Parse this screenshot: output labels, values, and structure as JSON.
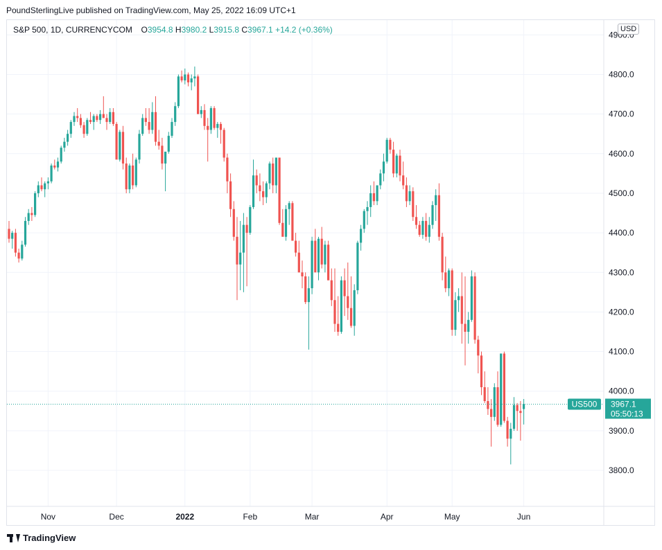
{
  "header": {
    "published": "PoundSterlingLive published on TradingView.com, May 25, 2022 16:09 UTC+1"
  },
  "legend": {
    "symbol": "S&P 500, 1D, CURRENCYCOM",
    "o_label": "O",
    "o": "3954.8",
    "h_label": "H",
    "h": "3980.2",
    "l_label": "L",
    "l": "3915.8",
    "c_label": "C",
    "c": "3967.1",
    "change": "+14.2 (+0.36%)"
  },
  "currency": "USD",
  "price_tag": {
    "label": "US500",
    "price": "3967.1",
    "countdown": "05:50:13"
  },
  "footer": {
    "brand": "TradingView"
  },
  "colors": {
    "up": "#26a69a",
    "down": "#ef5350",
    "grid": "#f0f3fa",
    "text": "#131722"
  },
  "chart_data": {
    "type": "candlestick",
    "title": "S&P 500, 1D, CURRENCYCOM",
    "ylim": [
      3700,
      4960
    ],
    "y_ticks": [
      3800,
      3900,
      4000,
      4100,
      4200,
      4300,
      4400,
      4500,
      4600,
      4700,
      4800,
      4900
    ],
    "x_ticks": [
      {
        "label": "Nov",
        "i": 12
      },
      {
        "label": "Dec",
        "i": 33
      },
      {
        "label": "2022",
        "i": 54,
        "bold": true
      },
      {
        "label": "Feb",
        "i": 74
      },
      {
        "label": "Mar",
        "i": 93
      },
      {
        "label": "Apr",
        "i": 116
      },
      {
        "label": "May",
        "i": 136
      },
      {
        "label": "Jun",
        "i": 158
      }
    ],
    "last_price": 3967.1,
    "candles": [
      [
        4410,
        4430,
        4375,
        4385
      ],
      [
        4385,
        4405,
        4360,
        4400
      ],
      [
        4400,
        4410,
        4340,
        4350
      ],
      [
        4350,
        4360,
        4325,
        4335
      ],
      [
        4335,
        4380,
        4330,
        4370
      ],
      [
        4370,
        4440,
        4365,
        4430
      ],
      [
        4430,
        4460,
        4420,
        4450
      ],
      [
        4450,
        4465,
        4430,
        4445
      ],
      [
        4445,
        4505,
        4440,
        4500
      ],
      [
        4500,
        4530,
        4490,
        4520
      ],
      [
        4520,
        4540,
        4505,
        4510
      ],
      [
        4510,
        4530,
        4490,
        4525
      ],
      [
        4525,
        4540,
        4510,
        4530
      ],
      [
        4530,
        4575,
        4525,
        4570
      ],
      [
        4570,
        4585,
        4560,
        4565
      ],
      [
        4565,
        4590,
        4555,
        4580
      ],
      [
        4580,
        4620,
        4575,
        4615
      ],
      [
        4615,
        4640,
        4605,
        4630
      ],
      [
        4630,
        4660,
        4620,
        4650
      ],
      [
        4650,
        4685,
        4640,
        4680
      ],
      [
        4680,
        4705,
        4670,
        4695
      ],
      [
        4695,
        4715,
        4680,
        4690
      ],
      [
        4690,
        4700,
        4665,
        4672
      ],
      [
        4672,
        4680,
        4640,
        4650
      ],
      [
        4650,
        4690,
        4645,
        4685
      ],
      [
        4685,
        4705,
        4675,
        4680
      ],
      [
        4680,
        4700,
        4660,
        4695
      ],
      [
        4695,
        4700,
        4680,
        4685
      ],
      [
        4685,
        4710,
        4675,
        4700
      ],
      [
        4700,
        4745,
        4690,
        4690
      ],
      [
        4690,
        4700,
        4660,
        4680
      ],
      [
        4680,
        4715,
        4675,
        4705
      ],
      [
        4705,
        4715,
        4670,
        4675
      ],
      [
        4675,
        4680,
        4590,
        4585
      ],
      [
        4585,
        4660,
        4580,
        4655
      ],
      [
        4655,
        4670,
        4560,
        4575
      ],
      [
        4575,
        4590,
        4500,
        4510
      ],
      [
        4510,
        4575,
        4500,
        4570
      ],
      [
        4570,
        4600,
        4510,
        4520
      ],
      [
        4520,
        4590,
        4515,
        4585
      ],
      [
        4585,
        4660,
        4575,
        4650
      ],
      [
        4650,
        4700,
        4645,
        4690
      ],
      [
        4690,
        4715,
        4670,
        4680
      ],
      [
        4680,
        4715,
        4650,
        4660
      ],
      [
        4660,
        4730,
        4650,
        4705
      ],
      [
        4705,
        4745,
        4620,
        4630
      ],
      [
        4630,
        4660,
        4610,
        4620
      ],
      [
        4620,
        4640,
        4560,
        4575
      ],
      [
        4575,
        4600,
        4505,
        4605
      ],
      [
        4605,
        4655,
        4600,
        4645
      ],
      [
        4645,
        4690,
        4640,
        4680
      ],
      [
        4680,
        4730,
        4670,
        4720
      ],
      [
        4720,
        4800,
        4715,
        4795
      ],
      [
        4795,
        4810,
        4780,
        4785
      ],
      [
        4785,
        4815,
        4775,
        4800
      ],
      [
        4800,
        4805,
        4770,
        4780
      ],
      [
        4780,
        4800,
        4760,
        4790
      ],
      [
        4790,
        4820,
        4770,
        4795
      ],
      [
        4795,
        4800,
        4700,
        4700
      ],
      [
        4700,
        4720,
        4690,
        4710
      ],
      [
        4710,
        4725,
        4660,
        4670
      ],
      [
        4670,
        4690,
        4580,
        4660
      ],
      [
        4660,
        4720,
        4650,
        4715
      ],
      [
        4715,
        4720,
        4660,
        4665
      ],
      [
        4665,
        4680,
        4640,
        4675
      ],
      [
        4675,
        4680,
        4625,
        4660
      ],
      [
        4660,
        4665,
        4580,
        4590
      ],
      [
        4590,
        4600,
        4500,
        4530
      ],
      [
        4530,
        4550,
        4440,
        4460
      ],
      [
        4460,
        4480,
        4380,
        4390
      ],
      [
        4390,
        4440,
        4230,
        4320
      ],
      [
        4320,
        4430,
        4255,
        4350
      ],
      [
        4350,
        4450,
        4250,
        4420
      ],
      [
        4420,
        4440,
        4265,
        4400
      ],
      [
        4400,
        4470,
        4395,
        4465
      ],
      [
        4465,
        4585,
        4460,
        4545
      ],
      [
        4545,
        4560,
        4500,
        4520
      ],
      [
        4520,
        4550,
        4480,
        4505
      ],
      [
        4505,
        4530,
        4470,
        4490
      ],
      [
        4490,
        4530,
        4475,
        4525
      ],
      [
        4525,
        4580,
        4510,
        4575
      ],
      [
        4575,
        4590,
        4500,
        4520
      ],
      [
        4520,
        4590,
        4500,
        4590
      ],
      [
        4590,
        4590,
        4420,
        4425
      ],
      [
        4425,
        4460,
        4395,
        4390
      ],
      [
        4390,
        4470,
        4380,
        4460
      ],
      [
        4460,
        4480,
        4420,
        4475
      ],
      [
        4475,
        4480,
        4390,
        4380
      ],
      [
        4380,
        4400,
        4340,
        4350
      ],
      [
        4350,
        4380,
        4300,
        4300
      ],
      [
        4300,
        4330,
        4260,
        4290
      ],
      [
        4290,
        4300,
        4220,
        4225
      ],
      [
        4225,
        4290,
        4105,
        4260
      ],
      [
        4260,
        4390,
        4245,
        4380
      ],
      [
        4380,
        4410,
        4300,
        4300
      ],
      [
        4300,
        4390,
        4280,
        4385
      ],
      [
        4385,
        4415,
        4310,
        4320
      ],
      [
        4320,
        4380,
        4300,
        4370
      ],
      [
        4370,
        4380,
        4290,
        4280
      ],
      [
        4280,
        4310,
        4215,
        4230
      ],
      [
        4230,
        4310,
        4150,
        4170
      ],
      [
        4170,
        4240,
        4140,
        4150
      ],
      [
        4150,
        4290,
        4145,
        4280
      ],
      [
        4280,
        4310,
        4190,
        4240
      ],
      [
        4240,
        4325,
        4180,
        4210
      ],
      [
        4210,
        4290,
        4160,
        4165
      ],
      [
        4165,
        4270,
        4140,
        4255
      ],
      [
        4255,
        4380,
        4245,
        4375
      ],
      [
        4375,
        4420,
        4355,
        4410
      ],
      [
        4410,
        4460,
        4400,
        4455
      ],
      [
        4455,
        4480,
        4420,
        4465
      ],
      [
        4465,
        4520,
        4440,
        4500
      ],
      [
        4500,
        4530,
        4470,
        4480
      ],
      [
        4480,
        4520,
        4470,
        4520
      ],
      [
        4520,
        4560,
        4510,
        4550
      ],
      [
        4550,
        4600,
        4530,
        4580
      ],
      [
        4580,
        4640,
        4575,
        4635
      ],
      [
        4635,
        4640,
        4600,
        4610
      ],
      [
        4610,
        4630,
        4540,
        4550
      ],
      [
        4550,
        4600,
        4540,
        4595
      ],
      [
        4595,
        4610,
        4530,
        4545
      ],
      [
        4545,
        4580,
        4510,
        4520
      ],
      [
        4520,
        4540,
        4465,
        4480
      ],
      [
        4480,
        4520,
        4470,
        4505
      ],
      [
        4505,
        4515,
        4430,
        4440
      ],
      [
        4440,
        4470,
        4410,
        4420
      ],
      [
        4420,
        4430,
        4390,
        4395
      ],
      [
        4395,
        4440,
        4385,
        4430
      ],
      [
        4430,
        4450,
        4380,
        4390
      ],
      [
        4390,
        4440,
        4375,
        4420
      ],
      [
        4420,
        4480,
        4410,
        4470
      ],
      [
        4470,
        4510,
        4430,
        4495
      ],
      [
        4495,
        4525,
        4380,
        4390
      ],
      [
        4390,
        4400,
        4280,
        4300
      ],
      [
        4300,
        4340,
        4250,
        4260
      ],
      [
        4260,
        4310,
        4240,
        4305
      ],
      [
        4305,
        4310,
        4140,
        4155
      ],
      [
        4155,
        4250,
        4140,
        4230
      ],
      [
        4230,
        4260,
        4200,
        4240
      ],
      [
        4240,
        4300,
        4120,
        4170
      ],
      [
        4170,
        4290,
        4065,
        4150
      ],
      [
        4150,
        4200,
        4120,
        4180
      ],
      [
        4180,
        4305,
        4175,
        4290
      ],
      [
        4290,
        4300,
        4120,
        4130
      ],
      [
        4130,
        4140,
        4045,
        4090
      ],
      [
        4090,
        4100,
        3990,
        4010
      ],
      [
        4010,
        4050,
        3970,
        3975
      ],
      [
        3975,
        4010,
        3940,
        3955
      ],
      [
        3955,
        3980,
        3860,
        3935
      ],
      [
        3935,
        4020,
        3925,
        4010
      ],
      [
        4010,
        4050,
        3910,
        3915
      ],
      [
        3915,
        4095,
        3910,
        4095
      ],
      [
        4095,
        4100,
        3920,
        3925
      ],
      [
        3925,
        3935,
        3860,
        3880
      ],
      [
        3880,
        3920,
        3815,
        3905
      ],
      [
        3905,
        3985,
        3900,
        3965
      ],
      [
        3965,
        3970,
        3900,
        3950
      ],
      [
        3950,
        3975,
        3875,
        3945
      ],
      [
        3954.8,
        3980.2,
        3915.8,
        3967.1
      ]
    ]
  }
}
